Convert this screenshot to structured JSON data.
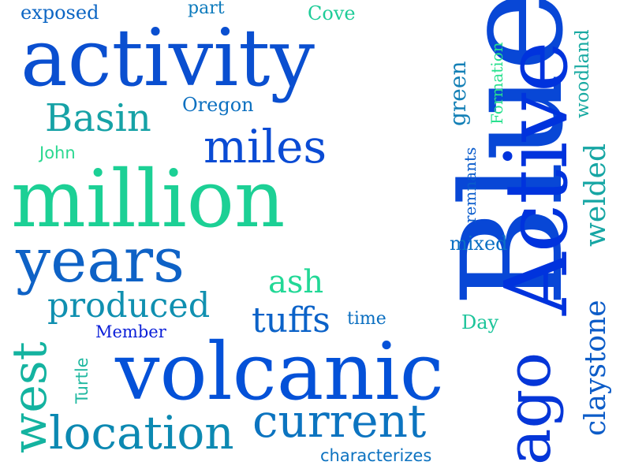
{
  "words": [
    {
      "id": "blue",
      "text": "Blue",
      "color": "#0847d6"
    },
    {
      "id": "active",
      "text": "Active",
      "color": "#0033dd"
    },
    {
      "id": "volcanic",
      "text": "volcanic",
      "color": "#0451d8"
    },
    {
      "id": "activity",
      "text": "activity",
      "color": "#0a4fd0"
    },
    {
      "id": "million",
      "text": "million",
      "color": "#1cd095"
    },
    {
      "id": "years",
      "text": "years",
      "color": "#0e62c6"
    },
    {
      "id": "ago",
      "text": "ago",
      "color": "#0536d8"
    },
    {
      "id": "location",
      "text": "location",
      "color": "#0c89b2"
    },
    {
      "id": "current",
      "text": "current",
      "color": "#0c74c0"
    },
    {
      "id": "west",
      "text": "west",
      "color": "#14b3a0"
    },
    {
      "id": "miles",
      "text": "miles",
      "color": "#0a4bd4"
    },
    {
      "id": "basin",
      "text": "Basin",
      "color": "#16a2a6"
    },
    {
      "id": "produced",
      "text": "produced",
      "color": "#1090b0"
    },
    {
      "id": "tuffs",
      "text": "tuffs",
      "color": "#0b62c8"
    },
    {
      "id": "ash",
      "text": "ash",
      "color": "#22d896"
    },
    {
      "id": "claystone",
      "text": "claystone",
      "color": "#0c5cc8"
    },
    {
      "id": "welded",
      "text": "welded",
      "color": "#16a6a4"
    },
    {
      "id": "green",
      "text": "green",
      "color": "#1480b6"
    },
    {
      "id": "woodland",
      "text": "woodland",
      "color": "#19aaa2"
    },
    {
      "id": "formation",
      "text": "Formation",
      "color": "#28e08e"
    },
    {
      "id": "remnants",
      "text": "remnants",
      "color": "#0a5ccc"
    },
    {
      "id": "oregon",
      "text": "Oregon",
      "color": "#0c70c0"
    },
    {
      "id": "john",
      "text": "John",
      "color": "#2ad890"
    },
    {
      "id": "member",
      "text": "Member",
      "color": "#0a1ed8"
    },
    {
      "id": "turtle",
      "text": "Turtle",
      "color": "#20b8a0"
    },
    {
      "id": "mixed",
      "text": "mixed",
      "color": "#0a70c4"
    },
    {
      "id": "time",
      "text": "time",
      "color": "#0a6ec0"
    },
    {
      "id": "day",
      "text": "Day",
      "color": "#1cc49a"
    },
    {
      "id": "characterizes",
      "text": "characterizes",
      "color": "#0c72c0"
    },
    {
      "id": "exposed",
      "text": "exposed",
      "color": "#0c66c4"
    },
    {
      "id": "part",
      "text": "part",
      "color": "#0c7abc"
    },
    {
      "id": "cove",
      "text": "Cove",
      "color": "#1ecc98"
    }
  ]
}
